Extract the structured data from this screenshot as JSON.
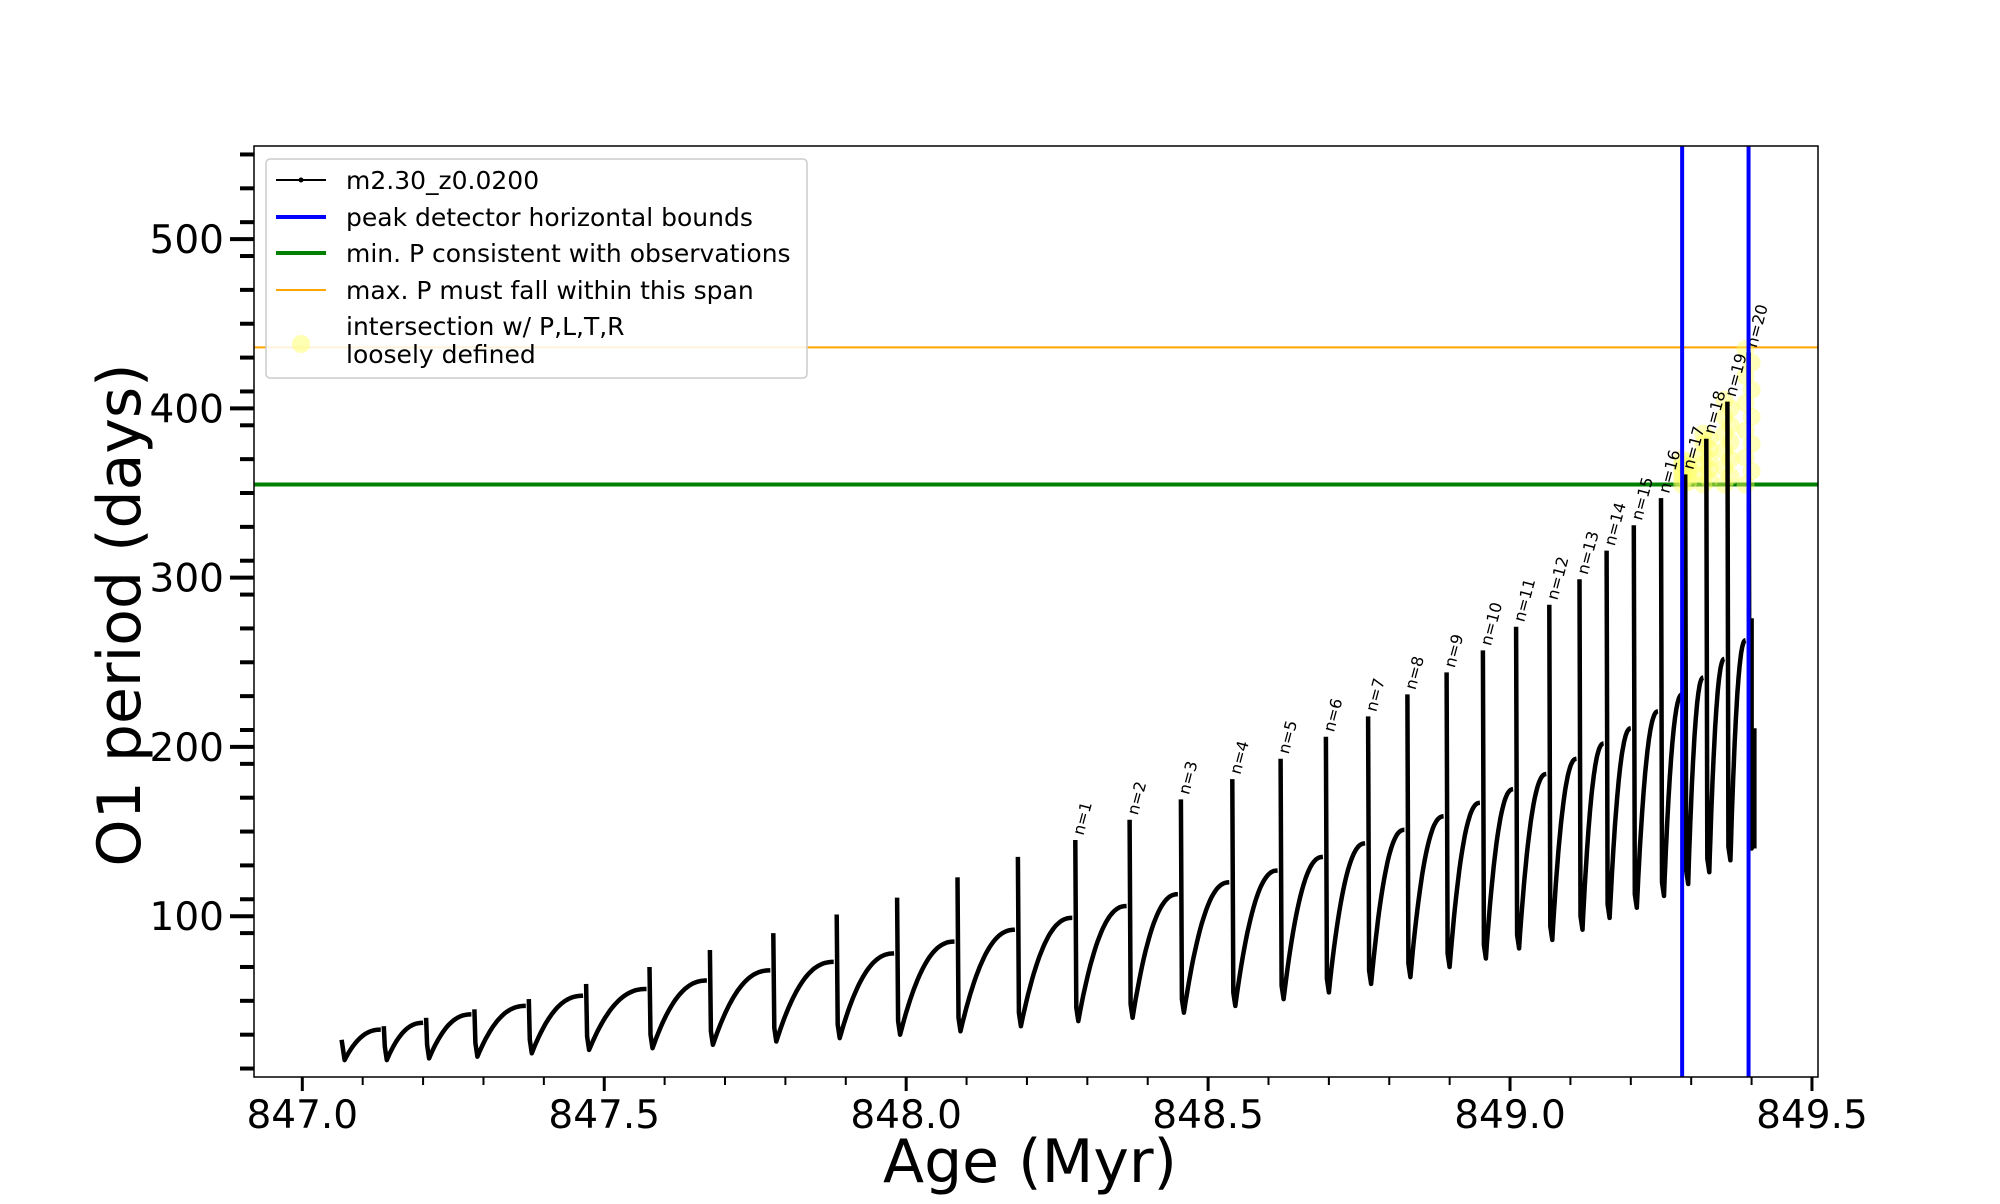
{
  "chart_data": {
    "type": "line",
    "xlabel": "Age (Myr)",
    "ylabel": "O1 period (days)",
    "xlim": [
      846.92,
      849.51
    ],
    "ylim": [
      5,
      555
    ],
    "x_ticks": [
      "847.0",
      "847.5",
      "848.0",
      "848.5",
      "849.0",
      "849.5"
    ],
    "y_ticks": [
      "100",
      "200",
      "300",
      "400",
      "500"
    ],
    "grid": false,
    "legend": {
      "position": "top-left",
      "entries": [
        {
          "label": "m2.30_z0.0200",
          "color": "#000000",
          "style": "line-marker"
        },
        {
          "label": "peak detector horizontal bounds",
          "color": "#0000ff",
          "style": "line"
        },
        {
          "label": "min. P consistent with observations",
          "color": "#008000",
          "style": "line"
        },
        {
          "label": "max. P must fall within this span",
          "color": "#ffa500",
          "style": "thin-line"
        },
        {
          "label": "intersection w/ P,L,T,R\nloosely defined",
          "color": "#ffff66",
          "style": "marker"
        }
      ]
    },
    "series": [
      {
        "name": "m2.30_z0.0200",
        "color": "#000000",
        "cycles": [
          {
            "x_start": 847.065,
            "x_end": 847.135,
            "min": 15,
            "max": 33,
            "spike": 27
          },
          {
            "x_start": 847.135,
            "x_end": 847.205,
            "min": 15,
            "max": 37,
            "spike": 35
          },
          {
            "x_start": 847.205,
            "x_end": 847.285,
            "min": 16,
            "max": 42,
            "spike": 40
          },
          {
            "x_start": 847.285,
            "x_end": 847.375,
            "min": 17,
            "max": 47,
            "spike": 45
          },
          {
            "x_start": 847.375,
            "x_end": 847.47,
            "min": 19,
            "max": 53,
            "spike": 51
          },
          {
            "x_start": 847.47,
            "x_end": 847.575,
            "min": 21,
            "max": 57,
            "spike": 60
          },
          {
            "x_start": 847.575,
            "x_end": 847.675,
            "min": 22,
            "max": 62,
            "spike": 70
          },
          {
            "x_start": 847.675,
            "x_end": 847.78,
            "min": 24,
            "max": 68,
            "spike": 80
          },
          {
            "x_start": 847.78,
            "x_end": 847.885,
            "min": 26,
            "max": 73,
            "spike": 90
          },
          {
            "x_start": 847.885,
            "x_end": 847.985,
            "min": 28,
            "max": 78,
            "spike": 101
          },
          {
            "x_start": 847.985,
            "x_end": 848.085,
            "min": 30,
            "max": 85,
            "spike": 111
          },
          {
            "x_start": 848.085,
            "x_end": 848.185,
            "min": 32,
            "max": 92,
            "spike": 123
          },
          {
            "x_start": 848.185,
            "x_end": 848.28,
            "min": 35,
            "max": 99,
            "spike": 135
          },
          {
            "x_start": 848.28,
            "x_end": 848.37,
            "min": 38,
            "max": 106,
            "spike": 145,
            "label": "n=1"
          },
          {
            "x_start": 848.37,
            "x_end": 848.455,
            "min": 40,
            "max": 113,
            "spike": 157,
            "label": "n=2"
          },
          {
            "x_start": 848.455,
            "x_end": 848.54,
            "min": 43,
            "max": 120,
            "spike": 169,
            "label": "n=3"
          },
          {
            "x_start": 848.54,
            "x_end": 848.62,
            "min": 47,
            "max": 127,
            "spike": 181,
            "label": "n=4"
          },
          {
            "x_start": 848.62,
            "x_end": 848.695,
            "min": 51,
            "max": 135,
            "spike": 193,
            "label": "n=5"
          },
          {
            "x_start": 848.695,
            "x_end": 848.765,
            "min": 55,
            "max": 143,
            "spike": 206,
            "label": "n=6"
          },
          {
            "x_start": 848.765,
            "x_end": 848.83,
            "min": 60,
            "max": 151,
            "spike": 218,
            "label": "n=7"
          },
          {
            "x_start": 848.83,
            "x_end": 848.895,
            "min": 64,
            "max": 159,
            "spike": 231,
            "label": "n=8"
          },
          {
            "x_start": 848.895,
            "x_end": 848.955,
            "min": 70,
            "max": 167,
            "spike": 244,
            "label": "n=9"
          },
          {
            "x_start": 848.955,
            "x_end": 849.01,
            "min": 75,
            "max": 175,
            "spike": 257,
            "label": "n=10"
          },
          {
            "x_start": 849.01,
            "x_end": 849.065,
            "min": 81,
            "max": 184,
            "spike": 271,
            "label": "n=11"
          },
          {
            "x_start": 849.065,
            "x_end": 849.115,
            "min": 86,
            "max": 193,
            "spike": 284,
            "label": "n=12"
          },
          {
            "x_start": 849.115,
            "x_end": 849.16,
            "min": 92,
            "max": 202,
            "spike": 299,
            "label": "n=13"
          },
          {
            "x_start": 849.16,
            "x_end": 849.205,
            "min": 99,
            "max": 211,
            "spike": 316,
            "label": "n=14"
          },
          {
            "x_start": 849.205,
            "x_end": 849.25,
            "min": 105,
            "max": 221,
            "spike": 331,
            "label": "n=15"
          },
          {
            "x_start": 849.25,
            "x_end": 849.29,
            "min": 112,
            "max": 231,
            "spike": 347,
            "label": "n=16"
          },
          {
            "x_start": 849.29,
            "x_end": 849.325,
            "min": 119,
            "max": 241,
            "spike": 361,
            "label": "n=17"
          },
          {
            "x_start": 849.325,
            "x_end": 849.36,
            "min": 126,
            "max": 252,
            "spike": 382,
            "label": "n=18"
          },
          {
            "x_start": 849.36,
            "x_end": 849.395,
            "min": 133,
            "max": 263,
            "spike": 404,
            "label": "n=19"
          },
          {
            "x_start": 849.395,
            "x_end": 849.405,
            "min": 140,
            "max": 276,
            "spike": 433,
            "label": "n=20"
          }
        ]
      }
    ],
    "vertical_lines": [
      {
        "name": "peak detector horizontal bounds",
        "x": 849.285,
        "color": "#0000ff"
      },
      {
        "name": "peak detector horizontal bounds",
        "x": 849.395,
        "color": "#0000ff"
      }
    ],
    "horizontal_lines": [
      {
        "name": "min. P consistent with observations",
        "y": 355,
        "color": "#008000"
      },
      {
        "name": "max. P must fall within this span",
        "y": 436,
        "color": "#ffa500"
      }
    ],
    "intersection_markers": [
      {
        "x": 849.29,
        "y_min": 355,
        "y_max": 370
      },
      {
        "x": 849.325,
        "y_min": 355,
        "y_max": 385
      },
      {
        "x": 849.36,
        "y_min": 355,
        "y_max": 405
      },
      {
        "x": 849.395,
        "y_min": 355,
        "y_max": 435
      }
    ]
  }
}
